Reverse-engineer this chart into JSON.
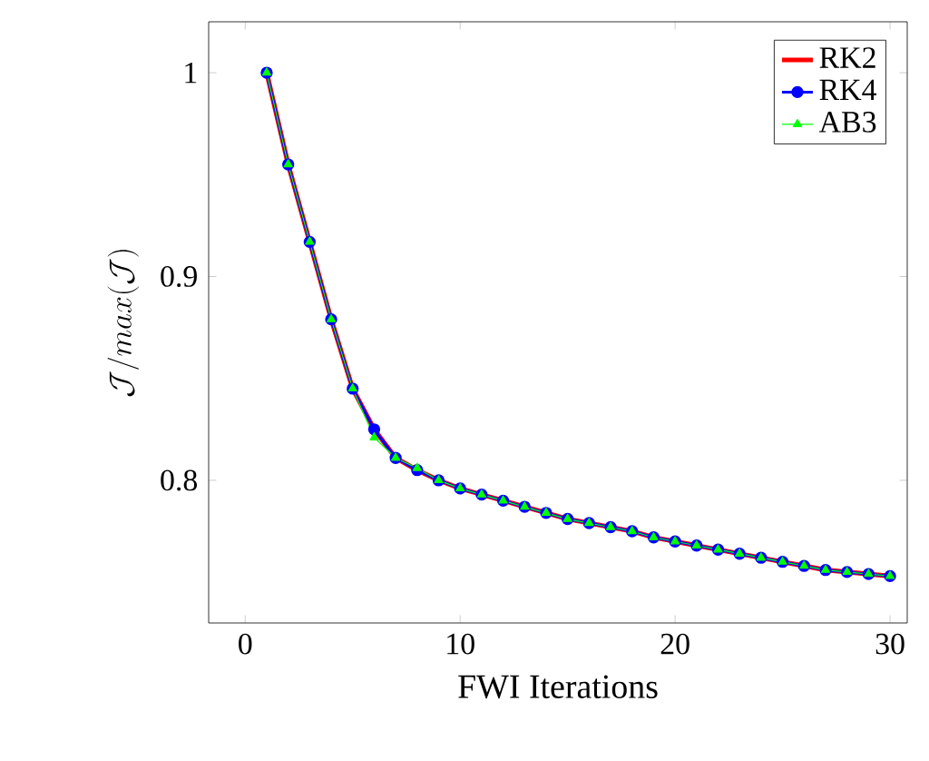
{
  "chart_data": {
    "type": "line",
    "xlabel": "FWI Iterations",
    "ylabel": "\\mathcal{J}/max(\\mathcal{J})",
    "x": [
      1,
      2,
      3,
      4,
      5,
      6,
      7,
      8,
      9,
      10,
      11,
      12,
      13,
      14,
      15,
      16,
      17,
      18,
      19,
      20,
      21,
      22,
      23,
      24,
      25,
      26,
      27,
      28,
      29,
      30
    ],
    "series": [
      {
        "name": "RK2",
        "color": "#ff0000",
        "marker": "none",
        "values": [
          1.0,
          0.955,
          0.917,
          0.879,
          0.845,
          0.825,
          0.811,
          0.805,
          0.8,
          0.796,
          0.793,
          0.79,
          0.787,
          0.784,
          0.781,
          0.779,
          0.777,
          0.775,
          0.772,
          0.77,
          0.768,
          0.766,
          0.764,
          0.762,
          0.76,
          0.758,
          0.756,
          0.755,
          0.754,
          0.753
        ]
      },
      {
        "name": "RK4",
        "color": "#0000ff",
        "marker": "circle",
        "values": [
          1.0,
          0.955,
          0.917,
          0.879,
          0.845,
          0.825,
          0.811,
          0.805,
          0.8,
          0.796,
          0.793,
          0.79,
          0.787,
          0.784,
          0.781,
          0.779,
          0.777,
          0.775,
          0.772,
          0.77,
          0.768,
          0.766,
          0.764,
          0.762,
          0.76,
          0.758,
          0.756,
          0.755,
          0.754,
          0.753
        ]
      },
      {
        "name": "AB3",
        "color": "#00ff00",
        "marker": "triangle",
        "values": [
          1.0,
          0.955,
          0.917,
          0.879,
          0.845,
          0.821,
          0.811,
          0.806,
          0.8,
          0.796,
          0.793,
          0.79,
          0.787,
          0.784,
          0.781,
          0.779,
          0.777,
          0.775,
          0.772,
          0.77,
          0.768,
          0.766,
          0.764,
          0.762,
          0.76,
          0.758,
          0.756,
          0.755,
          0.754,
          0.753
        ]
      }
    ],
    "xlim": [
      -1.7,
      30.8
    ],
    "ylim": [
      0.73,
      1.025
    ],
    "xticks": [
      0,
      10,
      20,
      30
    ],
    "yticks": [
      0.8,
      0.9,
      1
    ],
    "legend": "top right",
    "grid": false,
    "line_style": "solid"
  }
}
